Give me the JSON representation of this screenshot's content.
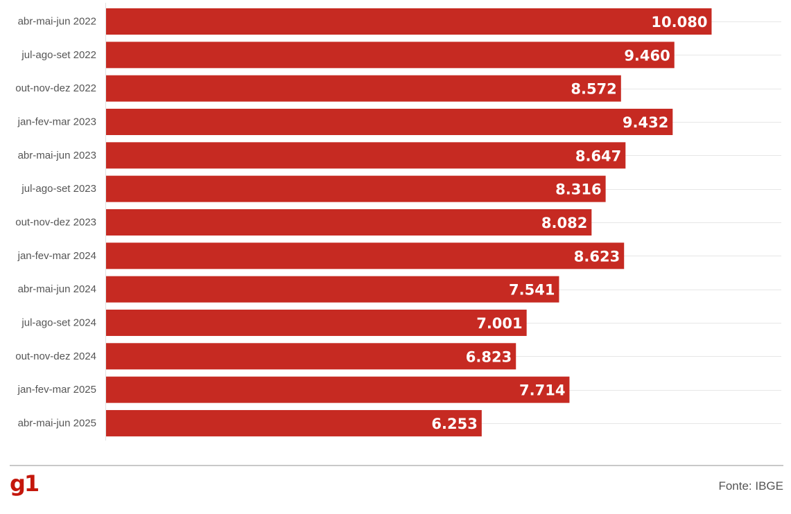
{
  "chart_data": {
    "type": "bar",
    "orientation": "horizontal",
    "categories": [
      "abr-mai-jun 2022",
      "jul-ago-set 2022",
      "out-nov-dez 2022",
      "jan-fev-mar 2023",
      "abr-mai-jun 2023",
      "jul-ago-set 2023",
      "out-nov-dez 2023",
      "jan-fev-mar 2024",
      "abr-mai-jun 2024",
      "jul-ago-set 2024",
      "out-nov-dez 2024",
      "jan-fev-mar 2025",
      "abr-mai-jun 2025"
    ],
    "values": [
      10080,
      9460,
      8572,
      9432,
      8647,
      8316,
      8082,
      8623,
      7541,
      7001,
      6823,
      7714,
      6253
    ],
    "value_labels": [
      "10.080",
      "9.460",
      "8.572",
      "9.432",
      "8.647",
      "8.316",
      "8.082",
      "8.623",
      "7.541",
      "7.001",
      "6.823",
      "7.714",
      "6.253"
    ],
    "xlim": [
      0,
      11240
    ],
    "grid": true,
    "bar_color": "#c62a22"
  },
  "footer": {
    "logo_text": "g1",
    "logo_color": "#c4170c",
    "source": "Fonte: IBGE"
  }
}
